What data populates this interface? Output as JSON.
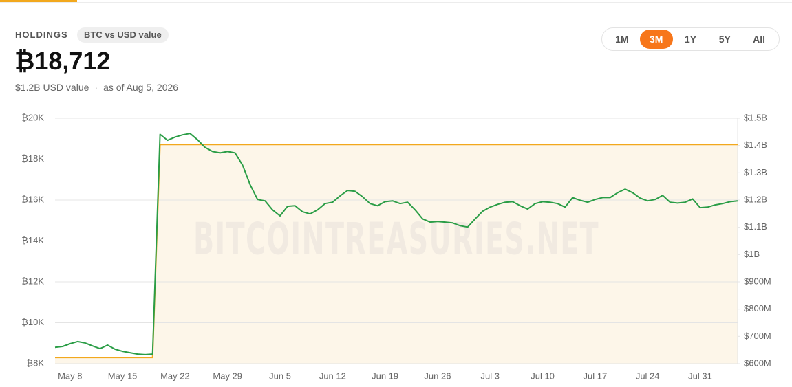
{
  "header": {
    "title": "HOLDINGS",
    "badge": "BTC vs USD value",
    "holdings": "₿18,712",
    "usd_value": "$1.2B USD value",
    "separator": "·",
    "as_of": "as of Aug 5, 2026"
  },
  "range_buttons": [
    {
      "label": "1M",
      "active": false
    },
    {
      "label": "3M",
      "active": true
    },
    {
      "label": "1Y",
      "active": false
    },
    {
      "label": "5Y",
      "active": false
    },
    {
      "label": "All",
      "active": false
    }
  ],
  "chart_data": {
    "type": "line",
    "watermark": "BITCOINTREASURIES.NET",
    "grid": true,
    "categories": [
      null,
      null,
      "May 8",
      null,
      null,
      null,
      null,
      null,
      null,
      "May 15",
      null,
      null,
      null,
      null,
      null,
      null,
      "May 22",
      null,
      null,
      null,
      null,
      null,
      null,
      "May 29",
      null,
      null,
      null,
      null,
      null,
      null,
      "Jun 5",
      null,
      null,
      null,
      null,
      null,
      null,
      "Jun 12",
      null,
      null,
      null,
      null,
      null,
      null,
      "Jun 19",
      null,
      null,
      null,
      null,
      null,
      null,
      "Jun 26",
      null,
      null,
      null,
      null,
      null,
      null,
      "Jul 3",
      null,
      null,
      null,
      null,
      null,
      null,
      "Jul 10",
      null,
      null,
      null,
      null,
      null,
      null,
      "Jul 17",
      null,
      null,
      null,
      null,
      null,
      null,
      "Jul 24",
      null,
      null,
      null,
      null,
      null,
      null,
      "Jul 31",
      null,
      null,
      null,
      null,
      null
    ],
    "ylim": [
      8000,
      20000
    ],
    "yticks": [
      {
        "value": 8000,
        "label": "₿8K"
      },
      {
        "value": 10000,
        "label": "₿10K"
      },
      {
        "value": 12000,
        "label": "₿12K"
      },
      {
        "value": 14000,
        "label": "₿14K"
      },
      {
        "value": 16000,
        "label": "₿16K"
      },
      {
        "value": 18000,
        "label": "₿18K"
      },
      {
        "value": 20000,
        "label": "₿20K"
      }
    ],
    "y2lim": [
      600000000,
      1500000000
    ],
    "y2ticks": [
      {
        "value": 600000000,
        "label": "$600M"
      },
      {
        "value": 700000000,
        "label": "$700M"
      },
      {
        "value": 800000000,
        "label": "$800M"
      },
      {
        "value": 900000000,
        "label": "$900M"
      },
      {
        "value": 1000000000,
        "label": "$1B"
      },
      {
        "value": 1100000000,
        "label": "$1.1B"
      },
      {
        "value": 1200000000,
        "label": "$1.2B"
      },
      {
        "value": 1300000000,
        "label": "$1.3B"
      },
      {
        "value": 1400000000,
        "label": "$1.4B"
      },
      {
        "value": 1500000000,
        "label": "$1.5B"
      }
    ],
    "series": [
      {
        "color": "#f2a81d",
        "fill": "#fdf6e9",
        "values": [
          8300,
          8300,
          8300,
          8300,
          8300,
          8300,
          8300,
          8300,
          8300,
          8300,
          8300,
          8300,
          8300,
          8300,
          18712,
          18712,
          18712,
          18712,
          18712,
          18712,
          18712,
          18712,
          18712,
          18712,
          18712,
          18712,
          18712,
          18712,
          18712,
          18712,
          18712,
          18712,
          18712,
          18712,
          18712,
          18712,
          18712,
          18712,
          18712,
          18712,
          18712,
          18712,
          18712,
          18712,
          18712,
          18712,
          18712,
          18712,
          18712,
          18712,
          18712,
          18712,
          18712,
          18712,
          18712,
          18712,
          18712,
          18712,
          18712,
          18712,
          18712,
          18712,
          18712,
          18712,
          18712,
          18712,
          18712,
          18712,
          18712,
          18712,
          18712,
          18712,
          18712,
          18712,
          18712,
          18712,
          18712,
          18712,
          18712,
          18712,
          18712,
          18712,
          18712,
          18712,
          18712,
          18712,
          18712,
          18712,
          18712,
          18712,
          18712,
          18712
        ]
      },
      {
        "color": "#2a9d46",
        "axis": "y2",
        "values": [
          660000000,
          663000000,
          673000000,
          681000000,
          676000000,
          665000000,
          655000000,
          668000000,
          653000000,
          645000000,
          640000000,
          635000000,
          633000000,
          635000000,
          1441000000,
          1419000000,
          1431000000,
          1439000000,
          1444000000,
          1421000000,
          1393000000,
          1378000000,
          1373000000,
          1378000000,
          1373000000,
          1328000000,
          1257000000,
          1202000000,
          1197000000,
          1164000000,
          1142000000,
          1177000000,
          1179000000,
          1157000000,
          1149000000,
          1164000000,
          1187000000,
          1192000000,
          1215000000,
          1235000000,
          1232000000,
          1212000000,
          1187000000,
          1179000000,
          1194000000,
          1197000000,
          1187000000,
          1192000000,
          1164000000,
          1131000000,
          1119000000,
          1121000000,
          1119000000,
          1116000000,
          1106000000,
          1101000000,
          1131000000,
          1159000000,
          1174000000,
          1184000000,
          1192000000,
          1194000000,
          1179000000,
          1167000000,
          1187000000,
          1194000000,
          1192000000,
          1187000000,
          1174000000,
          1209000000,
          1199000000,
          1192000000,
          1202000000,
          1209000000,
          1209000000,
          1227000000,
          1240000000,
          1227000000,
          1207000000,
          1197000000,
          1202000000,
          1217000000,
          1192000000,
          1189000000,
          1192000000,
          1204000000,
          1172000000,
          1174000000,
          1182000000,
          1187000000,
          1194000000,
          1197000000
        ]
      }
    ]
  }
}
